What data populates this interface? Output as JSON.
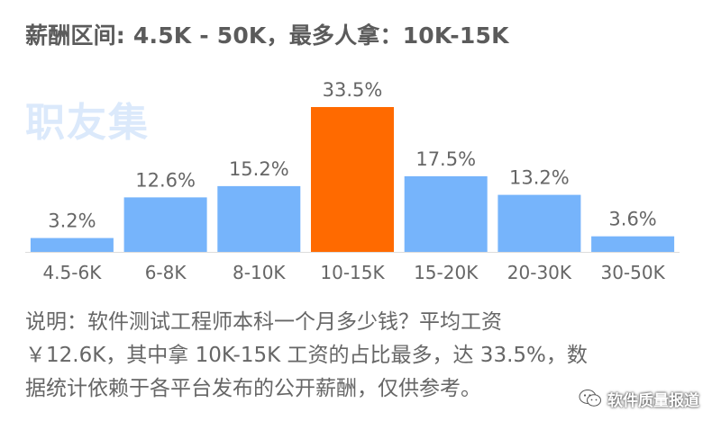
{
  "header": {
    "title": "薪酬区间: 4.5K - 50K，最多人拿：10K-15K",
    "logo_text": "职友集"
  },
  "description": {
    "line1": "说明：软件测试工程师本科一个月多少钱？平均工资",
    "line2": "￥12.6K，其中拿 10K-15K 工资的占比最多，达 33.5%，数",
    "line3": "据统计依赖于各平台发布的公开薪酬，仅供参考。"
  },
  "watermark": {
    "text": "软件质量报道",
    "icon": "wechat-icon"
  },
  "colors": {
    "bar": "#76b4fb",
    "highlight": "#ff6a00",
    "label": "#666666",
    "axis": "#dddddd"
  },
  "chart_data": {
    "type": "bar",
    "categories": [
      "4.5-6K",
      "6-8K",
      "8-10K",
      "10-15K",
      "15-20K",
      "20-30K",
      "30-50K"
    ],
    "values": [
      3.2,
      12.6,
      15.2,
      33.5,
      17.5,
      13.2,
      3.6
    ],
    "value_labels": [
      "3.2%",
      "12.6%",
      "15.2%",
      "33.5%",
      "17.5%",
      "13.2%",
      "3.6%"
    ],
    "highlight_index": 3,
    "ylim": [
      0,
      33.5
    ],
    "grid": false,
    "legend": "none",
    "title": "",
    "xlabel": "",
    "ylabel": ""
  }
}
